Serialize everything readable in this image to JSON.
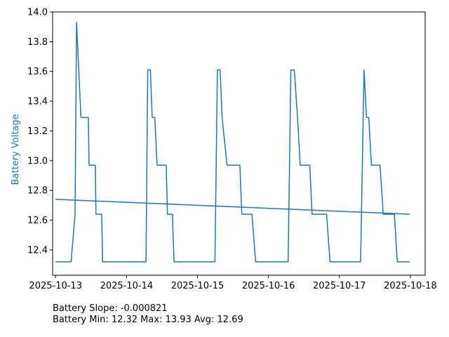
{
  "chart_data": {
    "type": "line",
    "ylabel": "Battery Voltage",
    "xlabel": "",
    "ylim": [
      12.23,
      14.0
    ],
    "xlim": [
      "2025-10-12T23:00",
      "2025-10-18T05:00"
    ],
    "x_ticks": [
      "2025-10-13",
      "2025-10-14",
      "2025-10-15",
      "2025-10-16",
      "2025-10-17",
      "2025-10-18"
    ],
    "y_ticks": [
      "12.4",
      "12.6",
      "12.8",
      "13.0",
      "13.2",
      "13.4",
      "13.6",
      "13.8",
      "14.0"
    ],
    "grid": false,
    "colors": {
      "series": "#1f77b4",
      "ylabel": "#1f77b4",
      "axes": "#000000"
    },
    "series": [
      {
        "x": [
          "2025-10-13T00:00",
          "2025-10-13T05:15",
          "2025-10-13T06:35",
          "2025-10-13T07:05",
          "2025-10-13T08:35",
          "2025-10-13T09:15",
          "2025-10-13T11:05",
          "2025-10-13T11:20",
          "2025-10-13T13:25",
          "2025-10-13T13:40",
          "2025-10-13T15:35",
          "2025-10-13T15:55",
          "2025-10-13T19:30",
          "2025-10-13T20:50",
          "2025-10-14T06:35",
          "2025-10-14T07:10",
          "2025-10-14T08:05",
          "2025-10-14T08:40",
          "2025-10-14T09:35",
          "2025-10-14T10:20",
          "2025-10-14T13:25",
          "2025-10-14T13:50",
          "2025-10-14T15:30",
          "2025-10-14T16:05",
          "2025-10-14T18:35",
          "2025-10-14T19:45",
          "2025-10-15T05:55",
          "2025-10-15T06:45",
          "2025-10-15T07:40",
          "2025-10-15T08:20",
          "2025-10-15T10:00",
          "2025-10-15T10:30",
          "2025-10-15T14:20",
          "2025-10-15T15:00",
          "2025-10-15T18:25",
          "2025-10-15T19:40",
          "2025-10-16T05:45",
          "2025-10-16T06:40",
          "2025-10-16T07:35",
          "2025-10-16T08:45",
          "2025-10-16T09:50",
          "2025-10-16T10:45",
          "2025-10-16T14:00",
          "2025-10-16T14:45",
          "2025-10-16T19:40",
          "2025-10-16T20:50",
          "2025-10-17T06:45",
          "2025-10-17T07:10",
          "2025-10-17T08:20",
          "2025-10-17T09:10",
          "2025-10-17T09:55",
          "2025-10-17T10:50",
          "2025-10-17T13:45",
          "2025-10-17T14:50",
          "2025-10-17T18:35",
          "2025-10-17T19:35",
          "2025-10-17T23:50"
        ],
        "values": [
          12.32,
          12.32,
          12.64,
          13.93,
          13.29,
          13.29,
          13.29,
          12.97,
          12.97,
          12.64,
          12.64,
          12.32,
          12.32,
          12.32,
          12.32,
          13.61,
          13.61,
          13.29,
          13.29,
          12.97,
          12.97,
          12.64,
          12.64,
          12.32,
          12.32,
          12.32,
          12.32,
          13.61,
          13.61,
          13.29,
          12.97,
          12.97,
          12.97,
          12.64,
          12.64,
          12.32,
          12.32,
          12.32,
          13.61,
          13.61,
          13.29,
          12.97,
          12.97,
          12.64,
          12.64,
          12.32,
          12.32,
          12.32,
          13.61,
          13.29,
          13.29,
          12.97,
          12.97,
          12.64,
          12.64,
          12.32,
          12.32
        ]
      },
      {
        "x": [
          "2025-10-13T00:00",
          "2025-10-17T23:50"
        ],
        "values": [
          12.74,
          12.64
        ]
      }
    ]
  },
  "stats": {
    "slope": "Battery Slope: -0.000821",
    "minmax": "Battery Min: 12.32 Max: 13.93 Avg: 12.69"
  }
}
